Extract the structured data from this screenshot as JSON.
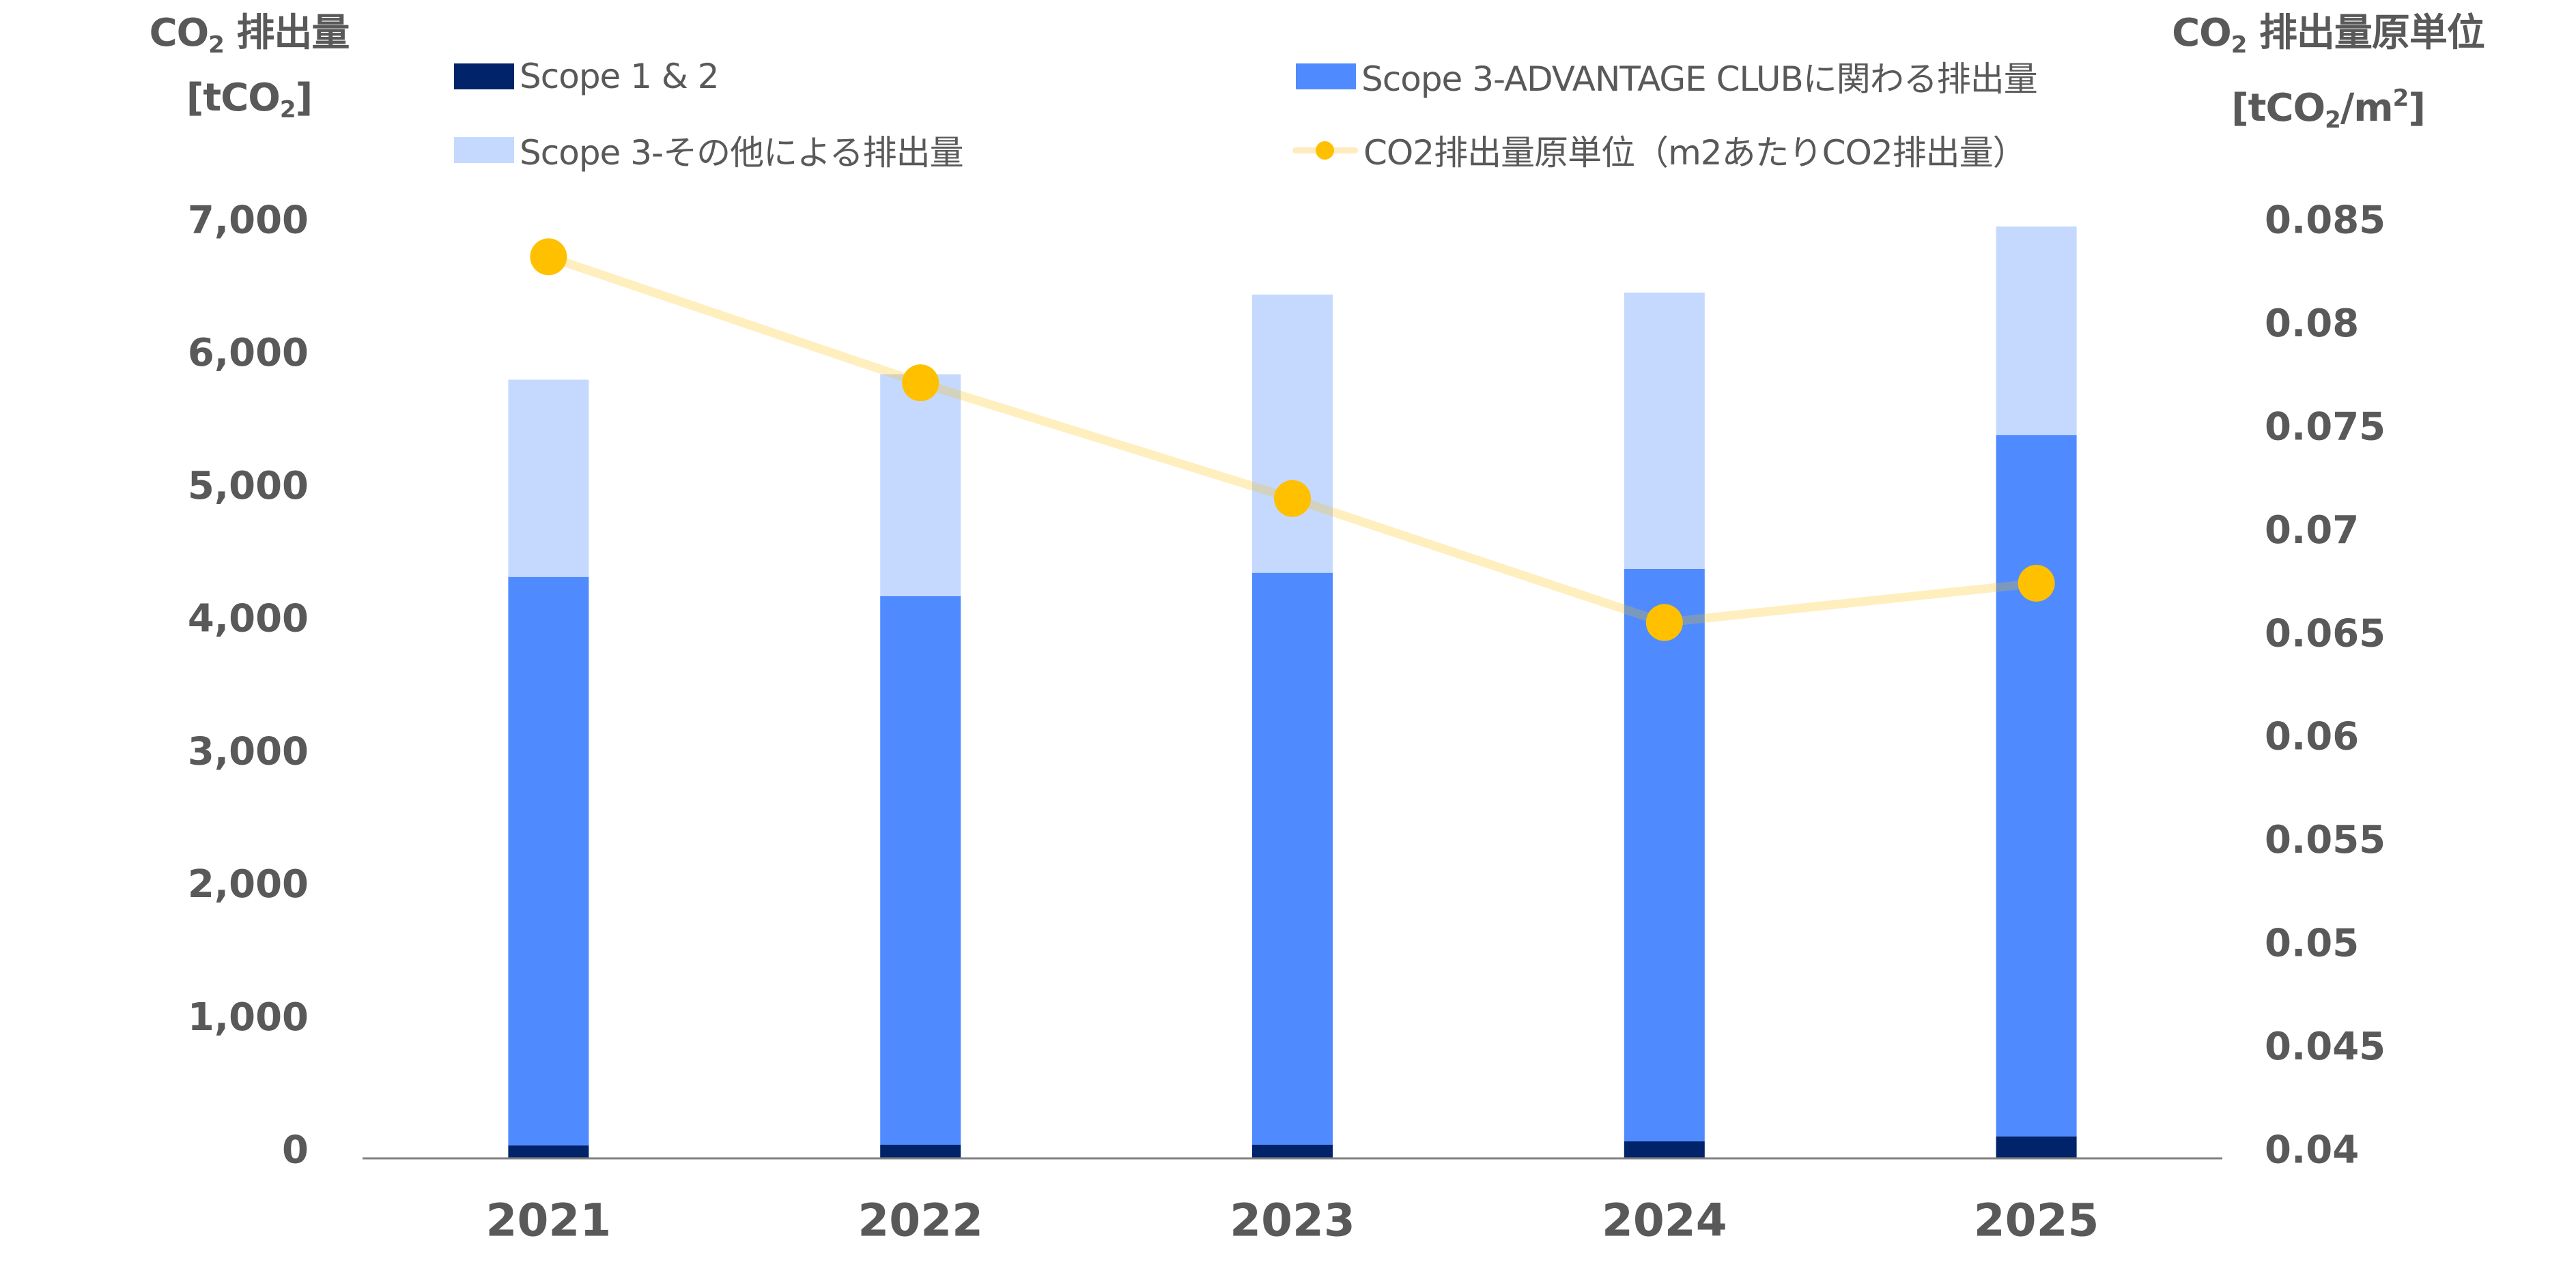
{
  "chart_data": {
    "type": "bar",
    "subtype": "stacked-bar-with-line-secondary-axis",
    "categories": [
      "2021",
      "2022",
      "2023",
      "2024",
      "2025"
    ],
    "left_axis": {
      "title_main": "CO",
      "title_sub": "2",
      "title_rest": " 排出量",
      "unit_open": "[tCO",
      "unit_sub": "2",
      "unit_close": "]",
      "range": [
        0,
        7000
      ],
      "ticks": [
        0,
        1000,
        2000,
        3000,
        4000,
        5000,
        6000,
        7000
      ],
      "tick_labels": [
        "0",
        "1,000",
        "2,000",
        "3,000",
        "4,000",
        "5,000",
        "6,000",
        "7,000"
      ]
    },
    "right_axis": {
      "title_main": "CO",
      "title_sub": "2",
      "title_rest": " 排出量原単位",
      "unit_open": "[tCO",
      "unit_sub": "2",
      "unit_mid": "/m",
      "unit_sup": "2",
      "unit_close": "]",
      "range": [
        0.04,
        0.085
      ],
      "ticks": [
        0.04,
        0.045,
        0.05,
        0.055,
        0.06,
        0.065,
        0.07,
        0.075,
        0.08,
        0.085
      ],
      "tick_labels": [
        "0.04",
        "0.045",
        "0.05",
        "0.055",
        "0.06",
        "0.065",
        "0.07",
        "0.075",
        "0.08",
        "0.085"
      ]
    },
    "series": [
      {
        "name": "Scope 1 & 2",
        "kind": "bar",
        "axis": "left",
        "color": "#002369",
        "values": [
          92,
          98,
          98,
          123,
          160
        ]
      },
      {
        "name": "Scope 3-ADVANTAGE CLUBに関わる排出量",
        "kind": "bar",
        "axis": "left",
        "color": "#4F8BFF",
        "values": [
          4280,
          4130,
          4305,
          4310,
          5280
        ]
      },
      {
        "name": "Scope 3-その他による排出量",
        "kind": "bar",
        "axis": "left",
        "color": "#C5D9FF",
        "values": [
          1485,
          1670,
          2095,
          2080,
          1570
        ]
      },
      {
        "name": "CO2排出量原単位（m2あたりCO2排出量）",
        "kind": "line",
        "axis": "right",
        "color": "#FFC000",
        "line_color": "#FFEBC0",
        "values": [
          0.0836,
          0.0775,
          0.0719,
          0.0659,
          0.0678
        ]
      }
    ],
    "legend": {
      "position": "top",
      "items": [
        {
          "label": "Scope 1 & 2",
          "color": "#002369",
          "marker": "square"
        },
        {
          "label": "Scope 3-ADVANTAGE CLUBに関わる排出量",
          "color": "#4F8BFF",
          "marker": "square"
        },
        {
          "label": "Scope 3-その他による排出量",
          "color": "#C5D9FF",
          "marker": "square"
        },
        {
          "label": "CO2排出量原単位（m2あたりCO2排出量）",
          "color": "#FFC000",
          "marker": "line-dot"
        }
      ]
    },
    "grid": false,
    "axis_color": "#808080",
    "text_color": "#595959"
  }
}
